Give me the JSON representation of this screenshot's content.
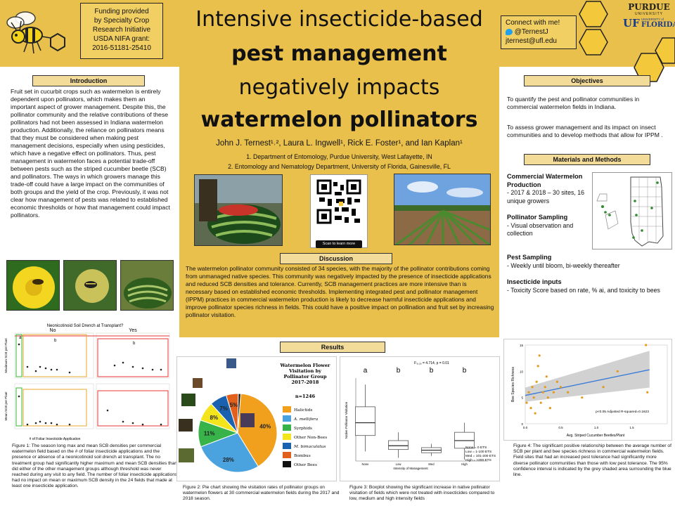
{
  "funding": [
    "Funding provided",
    "by Specialty Crop",
    "Research Initiative",
    "USDA NIFA grant:",
    "2016-51181-25410"
  ],
  "title": {
    "line1": "Intensive insecticide-based",
    "line2": "pest management",
    "line3": "negatively impacts",
    "line4": "watermelon pollinators"
  },
  "authors": "John J. Ternest¹˒², Laura L. Ingwell¹, Rick E. Foster¹, and Ian Kaplan¹",
  "affiliations": [
    "1. Department of Entomology, Purdue University, West Lafayette, IN",
    "2. Entomology and Nematology Department, University of Florida, Gainesville, FL"
  ],
  "connect": {
    "heading": "Connect with me!",
    "twitter": "@TernestJ",
    "email": "jternest@ufl.edu"
  },
  "logos": {
    "purdue": "PURDUE",
    "purdue_sub": "UNIVERSITY",
    "uf": "UF",
    "uf_sub": "UNIVERSITY of",
    "florida": "FLORIDA"
  },
  "qr": {
    "label": "Scan to learn more"
  },
  "introduction": {
    "heading": "Introduction",
    "text": "Fruit set in cucurbit crops such as watermelon is entirely dependent upon pollinators, which makes them an important aspect of grower management. Despite this, the pollinator community and the relative contributions of these pollinators had not been assessed in Indiana watermelon production. Additionally, the reliance on pollinators means that they must be considered when making pest management decisions, especially when using pesticides, which have a negative effect on pollinators. Thus, pest management in watermelon faces a potential trade-off between pests such as the striped cucumber beetle (SCB) and pollinators. The ways in which growers manage this trade-off could have a large impact on the communities of both groups and the yield of the crop. Previously, it was not clear how management of pests was related to established economic thresholds or how that management could impact pollinators."
  },
  "objectives": {
    "heading": "Objectives",
    "items": [
      "To quantify the pest and pollinator communities in commercial watermelon fields in Indiana.",
      "To assess grower management and its impact on insect communities and to develop methods that allow for IPPM ."
    ]
  },
  "methods": {
    "heading": "Materials and Methods",
    "sections": [
      {
        "title": "Commercial Watermelon Production",
        "body": "- 2017 & 2018 – 30 sites, 16 unique growers"
      },
      {
        "title": "Pollinator Sampling",
        "body": "- Visual observation and collection"
      },
      {
        "title": "Pest Sampling",
        "body": "- Weekly until bloom, bi-weekly thereafter"
      },
      {
        "title": "Insecticide inputs",
        "body": "- Toxicity Score based on rate, % ai, and toxicity to bees"
      }
    ]
  },
  "discussion": {
    "heading": "Discussion",
    "text": "The watermelon pollinator community consisted of 34 species, with the majority of the pollinator contributions coming from unmanaged native species. This community was negatively impacted by the presence of insecticide applications and reduced SCB densities and tolerance. Currently, SCB management practices are more intensive than is necessary based on established economic thresholds. Implementing integrated pest and pollinator management (IPPM) practices in commercial watermelon production is likely to decrease harmful insecticide applications and improve pollinator species richness in fields. This could have a positive impact on pollination and fruit set by increasing pollinator visitation."
  },
  "results": {
    "heading": "Results"
  },
  "figure1": {
    "title": "Neonicotinoid Soil Drench at Transplant?",
    "panel_no": "No",
    "panel_yes": "Yes",
    "ylabel_top": "Maximum SCB per Plant",
    "ylabel_bottom": "Mean SCB per Plant",
    "xlabel": "# of Foliar Insecticide Application",
    "letters": [
      "a",
      "b",
      "b"
    ],
    "caption": "Figure 1: The season long max and mean SCB densities per commercial watermelon field based on the # of foliar insecticide applications and the presence or absence of a neonicotinoid soil drench at transplant. The no treatment group had significantly higher maximum and mean SCB densities than did either of the other management groups although threshold was never reached during any visit to any field. The number of foliar insecticide applications had no impact on mean or maximum SCB density in the 24 fields that made at least one insecticide application."
  },
  "figure2": {
    "title": [
      "Watermelon Flower",
      "Visitation by",
      "Pollinator Group",
      "2017-2018"
    ],
    "n": "n=1246",
    "caption": "Figure 2: Pie chart showing the visitation rates of pollinator groups on watermelon flowers at 30 commercial watermelon fields during the 2017 and 2018 season."
  },
  "figure3": {
    "stat": "F₃,₂₆ = 4.714, p = 0.01",
    "ylabel": "Native Pollinator Visitation",
    "xlabel": "Intensity of Management",
    "legend": [
      "None = 0 ETS",
      "Low = 1-100 ETS",
      "Med = 101-200 ETS",
      "High = >200 ETS"
    ],
    "caption": "Figure 3: Boxplot showing the significant increase in native pollinator visitation of fields which were not treated with insecticides compared to low, medium and high intensity fields"
  },
  "figure4": {
    "ylabel": "Bee Species Richness",
    "xlabel": "Avg. Striped Cucumber Beetles/Plant",
    "stat": "p<0.05 Adjusted R-squared=0.1623",
    "caption": "Figure 4: The significant positive relationship between the average number of SCB per plant and bee species richness in commercial watermelon fields. Field sites that had an increased pest tolerance had significantly more diverse pollinator communities than those with low pest tolerance. The 95% confidence interval is indicated by the grey shaded area surrounding the blue line."
  },
  "chart_data": [
    {
      "type": "pie",
      "title": "Watermelon Flower Visitation by Pollinator Group 2017-2018",
      "categories": [
        "Halictids",
        "A. mellifera",
        "Syrphids",
        "Other Non-Bees",
        "M. bimaculatus",
        "Bombus",
        "Other Bees"
      ],
      "values": [
        40,
        28,
        11,
        8,
        7,
        5,
        1
      ],
      "colors": [
        "#f0a01c",
        "#4aa3df",
        "#37b34a",
        "#f4e41c",
        "#1a62b0",
        "#e0601c",
        "#111111"
      ],
      "labels": [
        "40%",
        "28%",
        "11%",
        "8%",
        "7%",
        "5%",
        ""
      ],
      "legend": "right"
    },
    {
      "type": "box",
      "title": "",
      "categories": [
        "None",
        "Low",
        "Med",
        "High"
      ],
      "letters": [
        "a",
        "b",
        "b",
        "b"
      ],
      "boxes": [
        {
          "min": 15,
          "q1": 40,
          "median": 60,
          "q3": 85,
          "max": 120
        },
        {
          "min": 5,
          "q1": 18,
          "median": 24,
          "q3": 32,
          "max": 45
        },
        {
          "min": 8,
          "q1": 13,
          "median": 17,
          "q3": 21,
          "max": 27
        },
        {
          "min": 2,
          "q1": 20,
          "median": 32,
          "q3": 45,
          "max": 60
        }
      ],
      "ylim": [
        0,
        130
      ],
      "ylabel": "Native Pollinator Visitation",
      "xlabel": "Intensity of Management"
    },
    {
      "type": "scatter",
      "title": "",
      "xlabel": "Avg. Striped Cucumber Beetles/Plant",
      "ylabel": "Bee Species Richness",
      "xlim": [
        0,
        2
      ],
      "ylim": [
        0,
        15
      ],
      "xticks": [
        "0.0",
        "0.5",
        "1.0",
        "1.5"
      ],
      "yticks": [
        "0",
        "5",
        "10",
        "15"
      ],
      "points": [
        [
          0.02,
          4
        ],
        [
          0.05,
          6
        ],
        [
          0.08,
          3
        ],
        [
          0.1,
          7
        ],
        [
          0.12,
          5
        ],
        [
          0.14,
          2
        ],
        [
          0.16,
          8
        ],
        [
          0.18,
          11
        ],
        [
          0.2,
          13
        ],
        [
          0.22,
          4
        ],
        [
          0.25,
          6
        ],
        [
          0.28,
          7
        ],
        [
          0.3,
          9
        ],
        [
          0.32,
          5
        ],
        [
          0.35,
          3
        ],
        [
          0.4,
          6
        ],
        [
          0.45,
          8
        ],
        [
          0.5,
          7
        ],
        [
          0.6,
          6
        ],
        [
          0.8,
          5
        ],
        [
          1.1,
          7
        ],
        [
          1.3,
          10
        ],
        [
          1.7,
          15
        ],
        [
          1.72,
          6
        ]
      ],
      "fit": {
        "x0": 0,
        "y0": 5.4,
        "x1": 1.75,
        "y1": 10.3
      }
    }
  ]
}
